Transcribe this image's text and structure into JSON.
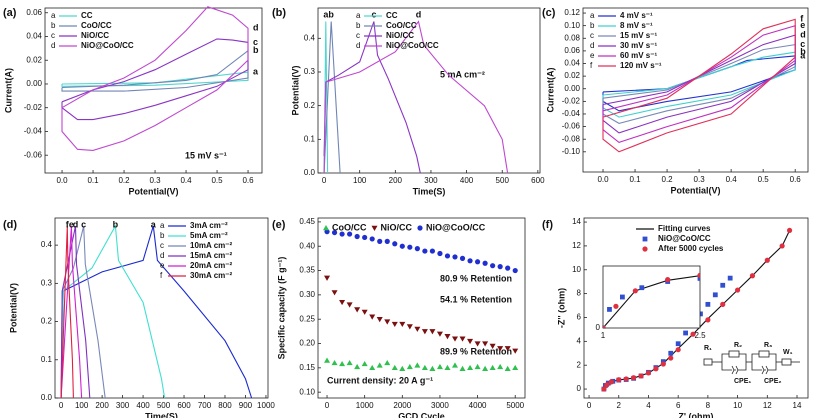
{
  "chart_data": [
    {
      "type": "line",
      "panel_label": "(a)",
      "xlabel": "Potential(V)",
      "ylabel": "Current(A)",
      "xlim": [
        -0.055,
        0.645
      ],
      "ylim": [
        -0.075,
        0.064
      ],
      "xticks": [
        {
          "value": 0,
          "label": "0.0"
        },
        0.1,
        0.2,
        0.3,
        0.4,
        0.5,
        0.6
      ],
      "yticks": [
        -0.06,
        -0.04,
        -0.02,
        {
          "value": 0,
          "label": "0.00"
        },
        0.02,
        0.04,
        0.06
      ],
      "legend": "upper left",
      "annotations": [
        "15 mV s⁻¹"
      ],
      "series": [
        {
          "letter": "a",
          "name": "CC",
          "color": "#4fd6cf",
          "x": [
            0,
            0.3,
            0.6,
            0.6,
            0.3,
            0,
            0
          ],
          "values": [
            0,
            0.001,
            0.01,
            0.003,
            -0.001,
            -0.002,
            0
          ]
        },
        {
          "letter": "b",
          "name": "CoO/CC",
          "color": "#6f86b5",
          "x": [
            0,
            0.2,
            0.4,
            0.5,
            0.6,
            0.6,
            0.4,
            0.2,
            0,
            0
          ],
          "values": [
            -0.003,
            -0.001,
            0.003,
            0.008,
            0.028,
            0.005,
            -0.003,
            -0.006,
            -0.006,
            -0.003
          ]
        },
        {
          "letter": "c",
          "name": "NiO/CC",
          "color": "#8a35c4",
          "x": [
            0,
            0.1,
            0.2,
            0.3,
            0.4,
            0.5,
            0.55,
            0.6,
            0.6,
            0.5,
            0.4,
            0.3,
            0.2,
            0.1,
            0.05,
            0,
            0
          ],
          "values": [
            -0.015,
            -0.005,
            0.002,
            0.012,
            0.025,
            0.038,
            0.037,
            0.035,
            0.012,
            -0.002,
            -0.01,
            -0.018,
            -0.025,
            -0.03,
            -0.03,
            -0.02,
            -0.015
          ]
        },
        {
          "letter": "d",
          "name": "NiO@CoO/CC",
          "color": "#c048d0",
          "x": [
            0,
            0.1,
            0.2,
            0.3,
            0.4,
            0.47,
            0.55,
            0.6,
            0.6,
            0.5,
            0.4,
            0.3,
            0.2,
            0.1,
            0.05,
            0,
            0
          ],
          "values": [
            -0.02,
            -0.005,
            0.005,
            0.02,
            0.045,
            0.065,
            0.058,
            0.047,
            0.02,
            -0.005,
            -0.02,
            -0.035,
            -0.048,
            -0.056,
            -0.055,
            -0.04,
            -0.02
          ]
        }
      ]
    },
    {
      "type": "line",
      "panel_label": "(b)",
      "xlabel": "Time(S)",
      "ylabel": "Potential(V)",
      "xlim": [
        -17,
        606
      ],
      "ylim": [
        0,
        0.49
      ],
      "xticks": [
        0,
        100,
        200,
        300,
        400,
        500,
        600
      ],
      "yticks": [
        {
          "value": 0,
          "label": "0.0"
        },
        0.1,
        0.2,
        0.3,
        0.4
      ],
      "legend": "upper left",
      "annotations": [
        "5 mA cm⁻²"
      ],
      "series": [
        {
          "letter": "a",
          "name": "CC",
          "color": "#4fd6cf",
          "x": [
            0,
            5,
            10
          ],
          "values": [
            0,
            0.45,
            0
          ]
        },
        {
          "letter": "b",
          "name": "CoO/CC",
          "color": "#6f86b5",
          "x": [
            0,
            20,
            45
          ],
          "values": [
            0,
            0.45,
            0
          ]
        },
        {
          "letter": "c",
          "name": "NiO/CC",
          "color": "#8a35c4",
          "x": [
            0,
            5,
            40,
            100,
            140,
            150,
            180,
            230,
            260,
            270
          ],
          "values": [
            0.05,
            0.27,
            0.29,
            0.33,
            0.45,
            0.35,
            0.28,
            0.15,
            0.05,
            0
          ]
        },
        {
          "letter": "d",
          "name": "NiO@CoO/CC",
          "color": "#c048d0",
          "x": [
            0,
            5,
            100,
            200,
            265,
            280,
            350,
            450,
            500,
            515
          ],
          "values": [
            0,
            0.27,
            0.3,
            0.36,
            0.45,
            0.38,
            0.29,
            0.2,
            0.1,
            0
          ]
        }
      ]
    },
    {
      "type": "line",
      "panel_label": "(c)",
      "xlabel": "Potential(V)",
      "ylabel": "Current(A)",
      "xlim": [
        -0.0625,
        0.64
      ],
      "ylim": [
        -0.132,
        0.128
      ],
      "xticks": [
        {
          "value": 0,
          "label": "0.0"
        },
        0.1,
        0.2,
        0.3,
        0.4,
        0.5,
        0.6
      ],
      "yticks": [
        {
          "value": -0.1,
          "label": "-0.10"
        },
        -0.08,
        -0.06,
        -0.04,
        -0.02,
        {
          "value": 0,
          "label": "0.00"
        },
        0.02,
        0.04,
        0.06,
        0.08,
        {
          "value": 0.1,
          "label": "0.10"
        },
        0.12
      ],
      "legend": "upper left",
      "series": [
        {
          "letter": "a",
          "name": "4 mV s⁻¹",
          "color": "#2233d0",
          "x": [
            0,
            0.2,
            0.4,
            0.45,
            0.6,
            0.6,
            0.4,
            0.2,
            0.05,
            0,
            0
          ],
          "values": [
            -0.005,
            0,
            0.035,
            0.045,
            0.052,
            0.03,
            -0.005,
            -0.02,
            -0.035,
            -0.02,
            -0.005
          ]
        },
        {
          "letter": "b",
          "name": "8 mV s⁻¹",
          "color": "#3ed2cf",
          "x": [
            0,
            0.2,
            0.4,
            0.5,
            0.6,
            0.6,
            0.4,
            0.2,
            0.05,
            0,
            0
          ],
          "values": [
            -0.01,
            0,
            0.035,
            0.05,
            0.058,
            0.03,
            -0.01,
            -0.028,
            -0.045,
            -0.03,
            -0.01
          ]
        },
        {
          "letter": "c",
          "name": "15 mV s⁻¹",
          "color": "#7a8ab8",
          "x": [
            0,
            0.2,
            0.4,
            0.5,
            0.6,
            0.6,
            0.4,
            0.2,
            0.05,
            0,
            0
          ],
          "values": [
            -0.015,
            -0.002,
            0.04,
            0.062,
            0.07,
            0.035,
            -0.015,
            -0.035,
            -0.055,
            -0.04,
            -0.015
          ]
        },
        {
          "letter": "d",
          "name": "30 mV s⁻¹",
          "color": "#8a30c0",
          "x": [
            0,
            0.2,
            0.4,
            0.5,
            0.6,
            0.6,
            0.4,
            0.2,
            0.05,
            0,
            0
          ],
          "values": [
            -0.025,
            -0.005,
            0.045,
            0.07,
            0.085,
            0.04,
            -0.02,
            -0.045,
            -0.07,
            -0.05,
            -0.025
          ]
        },
        {
          "letter": "e",
          "name": "60 mV s⁻¹",
          "color": "#c030c0",
          "x": [
            0,
            0.2,
            0.4,
            0.5,
            0.6,
            0.6,
            0.4,
            0.2,
            0.05,
            0,
            0
          ],
          "values": [
            -0.035,
            -0.01,
            0.05,
            0.085,
            0.1,
            0.045,
            -0.03,
            -0.06,
            -0.085,
            -0.065,
            -0.035
          ]
        },
        {
          "letter": "f",
          "name": "120 mV s⁻¹",
          "color": "#e0305a",
          "x": [
            0,
            0.2,
            0.4,
            0.5,
            0.6,
            0.6,
            0.4,
            0.2,
            0.05,
            0,
            0
          ],
          "values": [
            -0.045,
            -0.015,
            0.055,
            0.095,
            0.11,
            0.05,
            -0.04,
            -0.07,
            -0.1,
            -0.08,
            -0.045
          ]
        }
      ]
    },
    {
      "type": "line",
      "panel_label": "(d)",
      "xlabel": "Time(S)",
      "ylabel": "Potential(V)",
      "xlim": [
        -30,
        1010
      ],
      "ylim": [
        0,
        0.471
      ],
      "xticks": [
        0,
        100,
        200,
        300,
        400,
        500,
        600,
        700,
        800,
        900,
        1000
      ],
      "yticks": [
        {
          "value": 0,
          "label": "0.0"
        },
        0.1,
        0.2,
        0.3,
        0.4
      ],
      "legend": "upper right",
      "series": [
        {
          "letter": "a",
          "name": "3mA cm⁻²",
          "color": "#1a2ad0",
          "x": [
            0,
            10,
            200,
            400,
            450,
            470,
            600,
            800,
            900,
            930
          ],
          "values": [
            0,
            0.28,
            0.33,
            0.36,
            0.45,
            0.36,
            0.28,
            0.15,
            0.05,
            0
          ]
        },
        {
          "letter": "b",
          "name": "5mA cm⁻²",
          "color": "#40e0d0",
          "x": [
            0,
            10,
            150,
            265,
            280,
            400,
            490,
            505
          ],
          "values": [
            0,
            0.28,
            0.34,
            0.45,
            0.36,
            0.25,
            0.05,
            0
          ]
        },
        {
          "letter": "c",
          "name": "10mA cm⁻²",
          "color": "#7888b8",
          "x": [
            0,
            5,
            60,
            110,
            118,
            180,
            210,
            215
          ],
          "values": [
            0,
            0.28,
            0.34,
            0.45,
            0.35,
            0.15,
            0.02,
            0
          ]
        },
        {
          "letter": "d",
          "name": "15mA cm⁻²",
          "color": "#8030c0",
          "x": [
            0,
            5,
            70,
            75,
            120,
            140
          ],
          "values": [
            0,
            0.28,
            0.45,
            0.35,
            0.15,
            0
          ]
        },
        {
          "letter": "e",
          "name": "20mA cm⁻²",
          "color": "#d020d0",
          "x": [
            0,
            50,
            55,
            90,
            100
          ],
          "values": [
            0,
            0.45,
            0.35,
            0.1,
            0
          ]
        },
        {
          "letter": "f",
          "name": "30mA cm⁻²",
          "color": "#e02040",
          "x": [
            0,
            30,
            33,
            55,
            60
          ],
          "values": [
            0,
            0.45,
            0.35,
            0.1,
            0
          ]
        }
      ]
    },
    {
      "type": "scatter",
      "panel_label": "(e)",
      "xlabel": "GCD Cycle",
      "ylabel": "Specific capacity (F g⁻¹)",
      "xlim": [
        -240,
        5260
      ],
      "ylim": [
        0.088,
        0.458
      ],
      "xticks": [
        0,
        1000,
        2000,
        3000,
        4000,
        5000
      ],
      "yticks": [
        {
          "value": 0.1,
          "label": "0.10"
        },
        0.15,
        {
          "value": 0.2,
          "label": "0.20"
        },
        0.25,
        {
          "value": 0.3,
          "label": "0.30"
        },
        0.35,
        {
          "value": 0.4,
          "label": "0.40"
        },
        0.45
      ],
      "legend": "upper center",
      "annotations": [
        "80.9 % Retention",
        "54.1 % Retention",
        "89.9 % Retention",
        "Current density: 20 A g⁻¹"
      ],
      "x": [
        0,
        200,
        400,
        600,
        800,
        1000,
        1200,
        1400,
        1600,
        1800,
        2000,
        2200,
        2400,
        2600,
        2800,
        3000,
        3200,
        3400,
        3600,
        3800,
        4000,
        4200,
        4400,
        4600,
        4800,
        5000
      ],
      "series": [
        {
          "name": "CoO/CC",
          "color": "#30c050",
          "marker": "triangle-up",
          "values": [
            0.165,
            0.16,
            0.158,
            0.16,
            0.152,
            0.158,
            0.15,
            0.155,
            0.16,
            0.15,
            0.148,
            0.152,
            0.155,
            0.15,
            0.148,
            0.152,
            0.15,
            0.155,
            0.148,
            0.15,
            0.152,
            0.148,
            0.15,
            0.152,
            0.148,
            0.15
          ]
        },
        {
          "name": "NiO/CC",
          "color": "#7a1010",
          "marker": "triangle-down",
          "values": [
            0.335,
            0.305,
            0.285,
            0.28,
            0.27,
            0.265,
            0.255,
            0.25,
            0.245,
            0.24,
            0.24,
            0.235,
            0.23,
            0.225,
            0.225,
            0.22,
            0.215,
            0.21,
            0.21,
            0.205,
            0.2,
            0.2,
            0.195,
            0.19,
            0.19,
            0.185
          ]
        },
        {
          "name": "NiO@CoO/CC",
          "color": "#2030d0",
          "marker": "circle",
          "values": [
            0.43,
            0.428,
            0.425,
            0.425,
            0.42,
            0.418,
            0.415,
            0.41,
            0.41,
            0.405,
            0.4,
            0.398,
            0.395,
            0.39,
            0.39,
            0.385,
            0.38,
            0.378,
            0.375,
            0.37,
            0.368,
            0.365,
            0.36,
            0.358,
            0.355,
            0.35
          ]
        }
      ]
    },
    {
      "type": "scatter",
      "panel_label": "(f)",
      "xlabel": "Z' (ohm)",
      "ylabel": "-Z'' (ohm)",
      "xlim": [
        -0.34,
        14.74
      ],
      "ylim": [
        -0.75,
        14.34
      ],
      "xticks": [
        0,
        2,
        4,
        6,
        8,
        10,
        12,
        14
      ],
      "yticks": [
        0,
        2,
        4,
        6,
        8,
        10,
        12,
        14
      ],
      "legend": "upper left",
      "circuit_labels": [
        "R₁",
        "R₂",
        "CPE₁",
        "R₃",
        "CPE₂",
        "W₁"
      ],
      "inset": {
        "xlim": [
          1,
          2.5
        ],
        "ylim": [
          0,
          1
        ],
        "xticks": [
          1,
          2.5
        ],
        "yticks": [
          0
        ]
      },
      "series": [
        {
          "name": "Fitting curves",
          "color": "#111111",
          "marker": "line",
          "x": [
            1,
            1.5,
            2,
            3,
            4,
            5,
            6,
            7,
            8,
            9,
            10,
            11,
            12,
            13,
            13.5
          ],
          "values": [
            0,
            0.6,
            0.77,
            0.92,
            1.35,
            2.15,
            3.4,
            4.6,
            5.9,
            7.1,
            8.3,
            9.5,
            10.8,
            12,
            13.3
          ]
        },
        {
          "name": "NiO@CoO/CC",
          "color": "#3050d0",
          "marker": "square",
          "x": [
            1,
            1.1,
            1.3,
            1.6,
            2,
            2.5,
            3,
            3.5,
            4,
            4.5,
            5,
            5.5,
            6,
            6.5,
            7,
            7.5,
            8,
            8.5,
            9,
            9.5
          ],
          "values": [
            0,
            0.3,
            0.5,
            0.65,
            0.75,
            0.8,
            0.9,
            1.1,
            1.4,
            1.8,
            2.3,
            3,
            3.8,
            4.7,
            5.5,
            6.3,
            7.1,
            7.9,
            8.7,
            9.3
          ]
        },
        {
          "name": "After 5000 cycles",
          "color": "#e03040",
          "marker": "circle",
          "x": [
            1,
            1.2,
            1.5,
            2,
            2.5,
            3,
            3.5,
            4,
            4.5,
            5,
            5.5,
            6,
            7,
            8,
            9,
            10,
            11,
            12,
            13,
            13.5
          ],
          "values": [
            0,
            0.35,
            0.6,
            0.78,
            0.85,
            0.95,
            1.1,
            1.35,
            1.7,
            2.1,
            2.6,
            3.3,
            4.6,
            5.8,
            7.1,
            8.3,
            9.5,
            10.8,
            12,
            13.3
          ]
        }
      ]
    }
  ]
}
